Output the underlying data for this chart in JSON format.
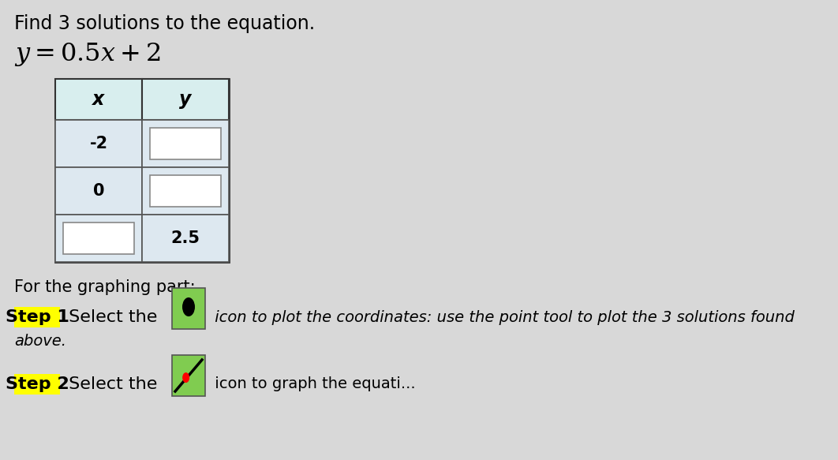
{
  "title_text": "Find 3 solutions to the equation.",
  "eq_text": "y = 0.5x + 2",
  "table_header_x": "x",
  "table_header_y": "y",
  "table_rows": [
    [
      "-2",
      ""
    ],
    [
      "0",
      ""
    ],
    [
      "",
      "2.5"
    ]
  ],
  "graphing_text": "For the graphing part:",
  "step1_label": "Step 1",
  "step1_mid": " Select the",
  "step1_after": " icon to plot the coordinates: use the point tool to plot the 3 solutions found",
  "step1_cont": "above.",
  "step2_label": "Step 2",
  "step2_mid": " Select the",
  "step2_after": " icon to graph the equati",
  "bg_color": "#d8d8d8",
  "table_outer_bg": "#ffffff",
  "table_header_bg": "#d8eeee",
  "table_row_filled_bg": "#dde8f0",
  "table_row_empty_bg": "#dde8f0",
  "table_input_box_bg": "#ffffff",
  "table_input_box_border": "#888888",
  "step_highlight": "#ffff00",
  "icon_green": "#80cc50",
  "title_fs": 17,
  "eq_fs": 21,
  "body_fs": 15,
  "step_fs": 16
}
